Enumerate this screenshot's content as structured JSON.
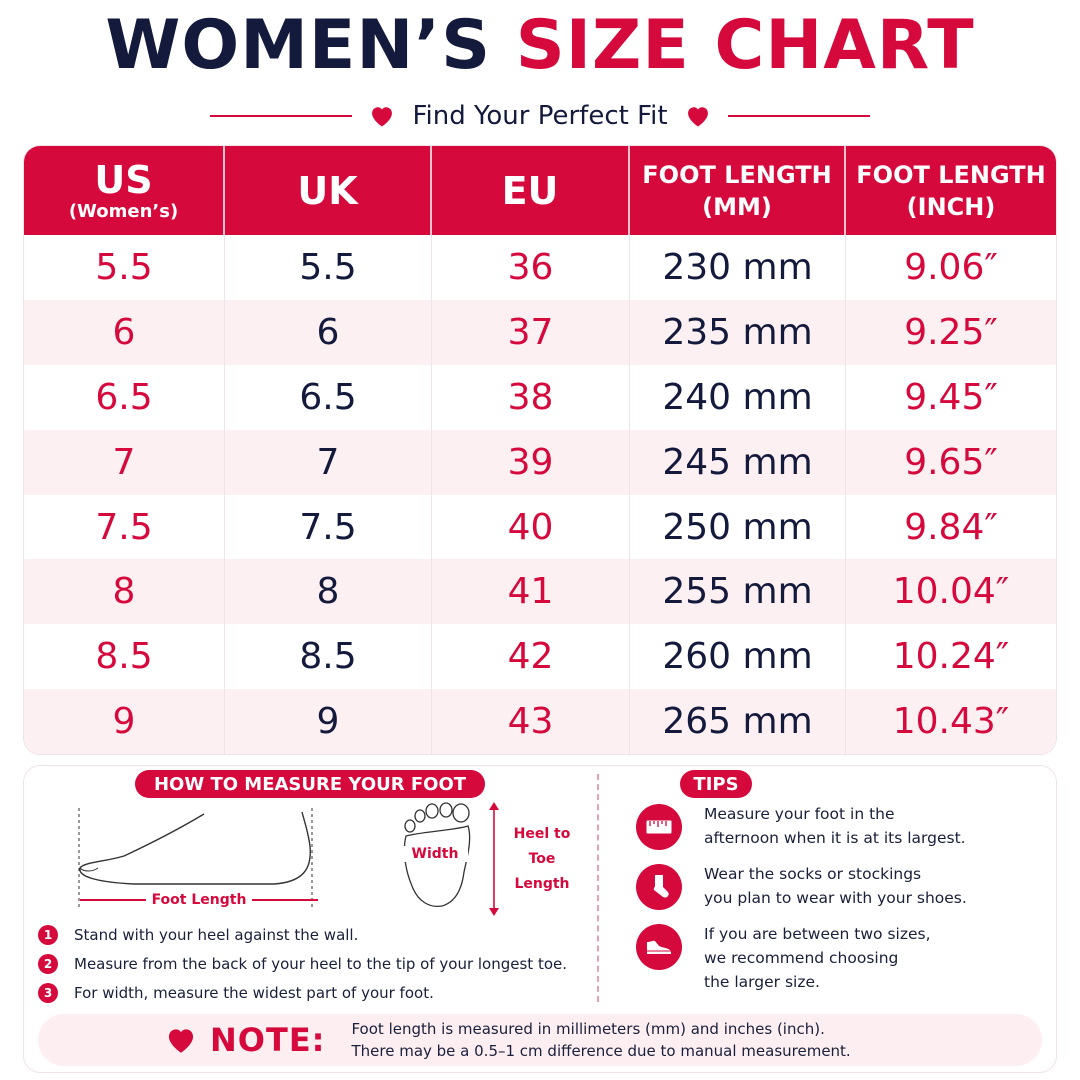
{
  "title": {
    "part1": "WOMEN’S",
    "part2": "SIZE CHART"
  },
  "subtitle": "Find Your Perfect Fit",
  "colors": {
    "accent": "#d6093d",
    "navy": "#131a3c",
    "row_alt": "#fdf0f3"
  },
  "table": {
    "headers": [
      {
        "line1": "US",
        "line2": "(Women’s)"
      },
      {
        "line1": "UK",
        "line2": ""
      },
      {
        "line1": "EU",
        "line2": ""
      },
      {
        "line1": "FOOT LENGTH",
        "line2": "(MM)"
      },
      {
        "line1": "FOOT LENGTH",
        "line2": "(INCH)"
      }
    ],
    "rows": [
      [
        "5.5",
        "5.5",
        "36",
        "230 mm",
        "9.06″"
      ],
      [
        "6",
        "6",
        "37",
        "235 mm",
        "9.25″"
      ],
      [
        "6.5",
        "6.5",
        "38",
        "240 mm",
        "9.45″"
      ],
      [
        "7",
        "7",
        "39",
        "245 mm",
        "9.65″"
      ],
      [
        "7.5",
        "7.5",
        "40",
        "250 mm",
        "9.84″"
      ],
      [
        "8",
        "8",
        "41",
        "255 mm",
        "10.04″"
      ],
      [
        "8.5",
        "8.5",
        "42",
        "260 mm",
        "10.24″"
      ],
      [
        "9",
        "9",
        "43",
        "265 mm",
        "10.43″"
      ]
    ]
  },
  "measure": {
    "heading": "HOW TO MEASURE YOUR FOOT",
    "foot_length_label": "Foot Length",
    "width_label": "Width",
    "heel_to_toe_label": [
      "Heel to",
      "Toe",
      "Length"
    ],
    "steps": [
      {
        "num": "1",
        "text": "Stand with your heel against the wall."
      },
      {
        "num": "2",
        "text": "Measure from the back of your heel to the tip of your longest toe."
      },
      {
        "num": "3",
        "text": "For width, measure the widest part of your foot."
      }
    ]
  },
  "tips": {
    "heading": "TIPS",
    "items": [
      {
        "icon": "ruler-icon",
        "text": "Measure your foot in the\nafternoon when it is at its largest."
      },
      {
        "icon": "sock-icon",
        "text": "Wear the socks or stockings\nyou plan to wear with your shoes."
      },
      {
        "icon": "shoe-icon",
        "text": "If you are between two sizes,\nwe recommend choosing\nthe larger size."
      }
    ]
  },
  "note": {
    "label": "NOTE:",
    "line1": "Foot length is measured in millimeters (mm) and inches (inch).",
    "line2": "There may be a 0.5–1 cm difference due to manual measurement."
  }
}
